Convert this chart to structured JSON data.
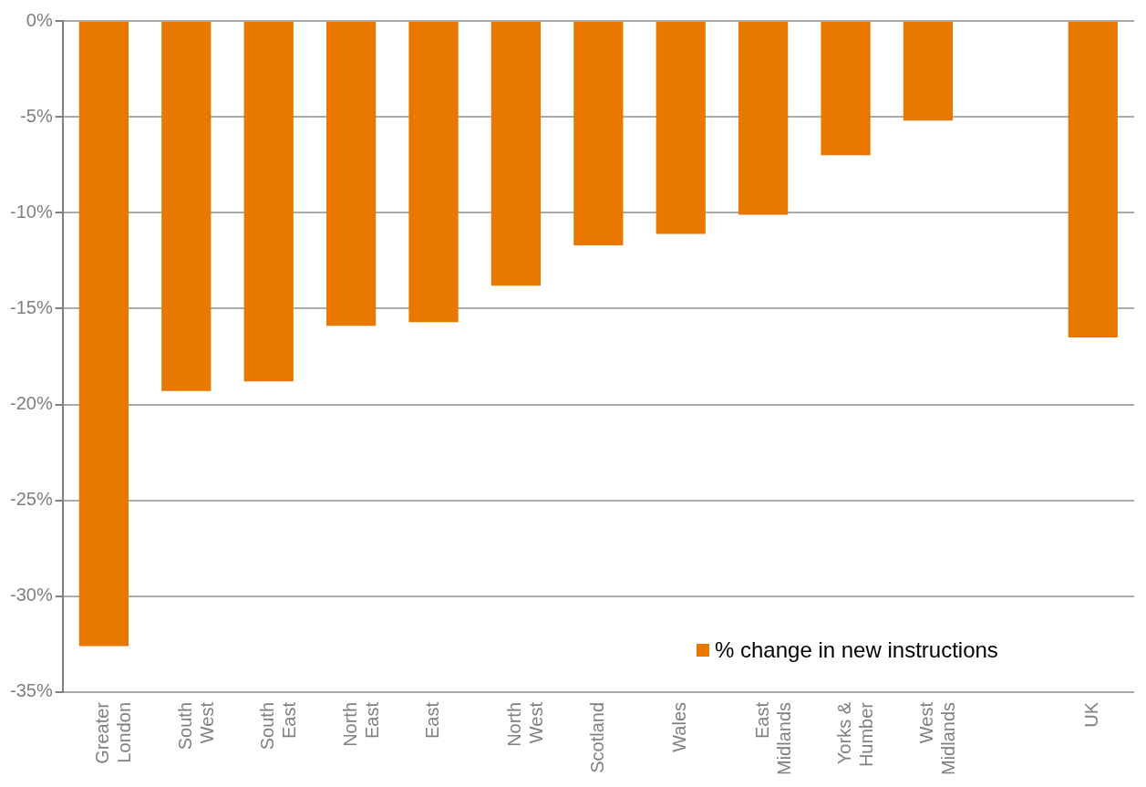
{
  "chart_data": {
    "type": "bar",
    "categories": [
      "Greater\nLondon",
      "South\nWest",
      "South\nEast",
      "North\nEast",
      "East",
      "North\nWest",
      "Scotland",
      "Wales",
      "East\nMidlands",
      "Yorks &\nHumber",
      "West\nMidlands",
      null,
      "UK"
    ],
    "series": [
      {
        "name": "% change in new instructions",
        "color": "#e87800",
        "values": [
          -32.6,
          -19.3,
          -18.8,
          -15.9,
          -15.7,
          -13.8,
          -11.7,
          -11.1,
          -10.1,
          -7.0,
          -5.2,
          null,
          -16.5
        ]
      }
    ],
    "ylim": [
      -35,
      0
    ],
    "yticks": [
      {
        "value": 0,
        "label": "0%"
      },
      {
        "value": -5,
        "label": "-5%"
      },
      {
        "value": -10,
        "label": "-10%"
      },
      {
        "value": -15,
        "label": "-15%"
      },
      {
        "value": -20,
        "label": "-20%"
      },
      {
        "value": -25,
        "label": "-25%"
      },
      {
        "value": -30,
        "label": "-30%"
      },
      {
        "value": -35,
        "label": "-35%"
      }
    ],
    "grid": "y",
    "legend": "bottom right"
  }
}
